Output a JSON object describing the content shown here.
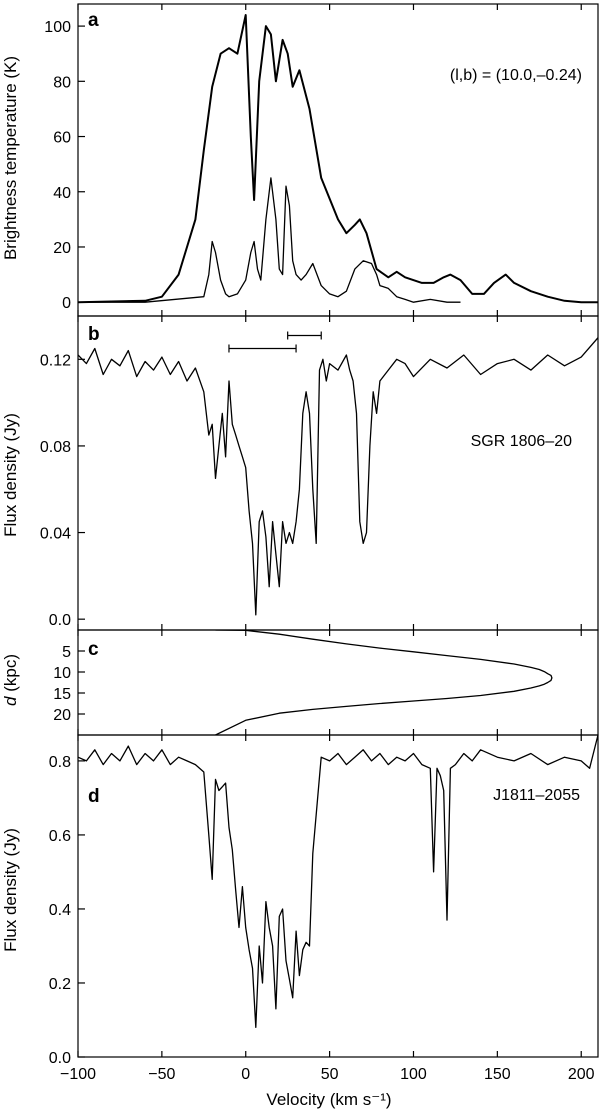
{
  "chart_data": [
    {
      "panel": "a",
      "type": "line",
      "ylabel": "Brightness temperature (K)",
      "annotation": "(l,b) = (10.0,–0.24)",
      "xlim": [
        -100,
        210
      ],
      "ylim": [
        -5,
        108
      ],
      "yticks": [
        0,
        20,
        40,
        60,
        80,
        100
      ],
      "series": [
        {
          "x": [
            -100,
            -60,
            -50,
            -40,
            -30,
            -25,
            -20,
            -15,
            -10,
            -5,
            0,
            3,
            5,
            8,
            12,
            15,
            18,
            22,
            25,
            28,
            32,
            38,
            45,
            55,
            60,
            65,
            68,
            72,
            78,
            85,
            90,
            95,
            105,
            112,
            118,
            122,
            128,
            135,
            142,
            148,
            155,
            160,
            170,
            180,
            190,
            200,
            210
          ],
          "y": [
            0,
            0.5,
            2,
            10,
            30,
            55,
            78,
            90,
            92,
            90,
            104,
            60,
            37,
            80,
            100,
            97,
            80,
            95,
            90,
            78,
            84,
            70,
            45,
            30,
            25,
            28,
            30,
            25,
            12,
            9,
            11,
            9,
            7,
            7,
            9,
            10,
            8,
            3,
            3,
            7,
            10,
            7,
            4,
            2,
            0.5,
            0,
            0
          ]
        },
        {
          "x": [
            -100,
            -60,
            -25,
            -22,
            -20,
            -18,
            -15,
            -12,
            -10,
            -5,
            0,
            3,
            5,
            7,
            9,
            12,
            15,
            18,
            20,
            22,
            24,
            26,
            28,
            30,
            33,
            36,
            40,
            45,
            50,
            55,
            60,
            65,
            70,
            75,
            78,
            80,
            85,
            90,
            95,
            100,
            110,
            120,
            128
          ],
          "y": [
            0,
            0,
            2,
            10,
            22,
            18,
            8,
            3,
            2,
            3,
            8,
            18,
            22,
            12,
            8,
            30,
            45,
            30,
            12,
            10,
            42,
            35,
            15,
            10,
            8,
            10,
            14,
            6,
            3,
            2,
            4,
            12,
            15,
            14,
            10,
            6,
            5,
            2,
            1,
            0,
            1,
            0,
            0
          ]
        }
      ]
    },
    {
      "panel": "b",
      "type": "line",
      "ylabel": "Flux density (Jy)",
      "annotation": "SGR 1806–20",
      "xlim": [
        -100,
        210
      ],
      "ylim": [
        -0.005,
        0.14
      ],
      "yticks": [
        0.0,
        0.04,
        0.08,
        0.12
      ],
      "ytick_labels": [
        "0.0",
        "0.04",
        "0.08",
        "0.12"
      ],
      "error_bars": [
        {
          "y": 0.125,
          "x1": -10,
          "x2": 30
        },
        {
          "y": 0.131,
          "x1": 25,
          "x2": 45
        }
      ],
      "series": [
        {
          "x": [
            -100,
            -95,
            -90,
            -85,
            -80,
            -75,
            -70,
            -65,
            -60,
            -55,
            -50,
            -45,
            -40,
            -35,
            -30,
            -25,
            -22,
            -20,
            -18,
            -16,
            -14,
            -12,
            -10,
            -8,
            -6,
            -4,
            -2,
            0,
            2,
            4,
            6,
            8,
            10,
            12,
            14,
            16,
            18,
            20,
            22,
            24,
            26,
            28,
            30,
            32,
            34,
            36,
            38,
            40,
            42,
            44,
            46,
            48,
            50,
            55,
            60,
            62,
            64,
            66,
            68,
            70,
            72,
            74,
            76,
            78,
            80,
            85,
            90,
            95,
            100,
            110,
            120,
            130,
            140,
            150,
            160,
            170,
            180,
            190,
            200,
            210
          ],
          "y": [
            0.122,
            0.118,
            0.125,
            0.113,
            0.12,
            0.117,
            0.124,
            0.112,
            0.119,
            0.115,
            0.121,
            0.113,
            0.119,
            0.11,
            0.116,
            0.105,
            0.085,
            0.09,
            0.065,
            0.08,
            0.095,
            0.075,
            0.11,
            0.09,
            0.085,
            0.08,
            0.075,
            0.07,
            0.05,
            0.035,
            0.002,
            0.045,
            0.05,
            0.038,
            0.015,
            0.045,
            0.03,
            0.015,
            0.045,
            0.035,
            0.04,
            0.035,
            0.045,
            0.06,
            0.095,
            0.105,
            0.095,
            0.06,
            0.035,
            0.115,
            0.12,
            0.11,
            0.118,
            0.115,
            0.122,
            0.115,
            0.11,
            0.095,
            0.045,
            0.035,
            0.04,
            0.08,
            0.105,
            0.095,
            0.11,
            0.115,
            0.12,
            0.118,
            0.112,
            0.12,
            0.116,
            0.122,
            0.113,
            0.118,
            0.12,
            0.115,
            0.122,
            0.117,
            0.121,
            0.13
          ]
        }
      ]
    },
    {
      "panel": "c",
      "type": "line",
      "ylabel": "d (kpc)",
      "ylabel_italic": "d",
      "ylabel_rest": " (kpc)",
      "xlim": [
        -100,
        210
      ],
      "ylim": [
        25,
        0
      ],
      "yticks": [
        5,
        10,
        15,
        20
      ],
      "series": [
        {
          "x": [
            -18,
            0,
            20,
            40,
            60,
            80,
            100,
            120,
            140,
            160,
            170,
            175,
            178,
            180,
            182,
            182.5,
            182,
            180,
            178,
            175,
            170,
            160,
            140,
            120,
            100,
            80,
            60,
            40,
            20,
            0,
            -18
          ],
          "y": [
            0,
            0.1,
            1.0,
            2.2,
            3.3,
            4.3,
            5.2,
            6.1,
            7.0,
            8.1,
            8.9,
            9.4,
            9.9,
            10.4,
            10.8,
            11.4,
            12.0,
            12.5,
            12.9,
            13.3,
            13.8,
            14.6,
            15.6,
            16.3,
            16.9,
            17.5,
            18.2,
            18.9,
            19.8,
            21.5,
            25
          ]
        }
      ]
    },
    {
      "panel": "d",
      "type": "line",
      "ylabel": "Flux density (Jy)",
      "annotation": "J1811–2055",
      "xlabel": "Velocity (km s⁻¹)",
      "xlim": [
        -100,
        210
      ],
      "ylim": [
        0,
        0.87
      ],
      "yticks": [
        0.0,
        0.2,
        0.4,
        0.6,
        0.8
      ],
      "ytick_labels": [
        "0.0",
        "0.2",
        "0.4",
        "0.6",
        "0.8"
      ],
      "xticks": [
        -100,
        -50,
        0,
        50,
        100,
        150,
        200
      ],
      "xtick_labels": [
        "−100",
        "−50",
        "0",
        "50",
        "100",
        "150",
        "200"
      ],
      "series": [
        {
          "x": [
            -100,
            -95,
            -90,
            -85,
            -80,
            -75,
            -70,
            -65,
            -60,
            -55,
            -50,
            -45,
            -40,
            -35,
            -30,
            -25,
            -22,
            -20,
            -18,
            -16,
            -14,
            -12,
            -10,
            -8,
            -6,
            -4,
            -2,
            0,
            2,
            4,
            6,
            8,
            10,
            12,
            14,
            16,
            18,
            20,
            22,
            24,
            26,
            28,
            30,
            32,
            34,
            36,
            38,
            40,
            45,
            50,
            55,
            60,
            65,
            70,
            75,
            80,
            85,
            90,
            95,
            100,
            105,
            110,
            112,
            114,
            116,
            118,
            120,
            122,
            125,
            130,
            135,
            140,
            150,
            160,
            170,
            180,
            190,
            200,
            205,
            210
          ],
          "y": [
            0.81,
            0.8,
            0.83,
            0.79,
            0.82,
            0.8,
            0.84,
            0.79,
            0.82,
            0.8,
            0.83,
            0.79,
            0.81,
            0.8,
            0.79,
            0.77,
            0.6,
            0.48,
            0.75,
            0.72,
            0.73,
            0.74,
            0.62,
            0.56,
            0.45,
            0.35,
            0.46,
            0.35,
            0.29,
            0.24,
            0.08,
            0.3,
            0.2,
            0.42,
            0.35,
            0.3,
            0.13,
            0.38,
            0.4,
            0.26,
            0.21,
            0.16,
            0.34,
            0.22,
            0.29,
            0.31,
            0.3,
            0.55,
            0.81,
            0.8,
            0.82,
            0.79,
            0.81,
            0.83,
            0.8,
            0.82,
            0.79,
            0.81,
            0.8,
            0.82,
            0.79,
            0.78,
            0.5,
            0.78,
            0.76,
            0.72,
            0.37,
            0.78,
            0.79,
            0.82,
            0.8,
            0.83,
            0.81,
            0.8,
            0.82,
            0.79,
            0.81,
            0.8,
            0.78,
            0.87
          ]
        }
      ]
    }
  ]
}
